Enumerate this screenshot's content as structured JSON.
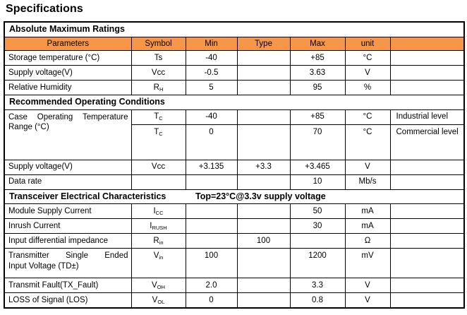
{
  "title": "Specifications",
  "colors": {
    "header_bg": "#F79646",
    "border": "#000000",
    "text": "#000000"
  },
  "table": {
    "section1": "Absolute Maximum Ratings",
    "headers": [
      "Parameters",
      "Symbol",
      "Min",
      "Type",
      "Max",
      "unit",
      ""
    ],
    "amr": [
      {
        "param": "Storage temperature (°C)",
        "sym": "Ts",
        "sub": "",
        "min": "-40",
        "type": "",
        "max": "+85",
        "unit": "°C",
        "note": ""
      },
      {
        "param": "Supply voltage(V)",
        "sym": "Vcc",
        "sub": "",
        "min": "-0.5",
        "type": "",
        "max": "3.63",
        "unit": "V",
        "note": ""
      },
      {
        "param": "Relative Humidity",
        "sym": "R",
        "sub": "H",
        "min": "5",
        "type": "",
        "max": "95",
        "unit": "%",
        "note": ""
      }
    ],
    "section2": "Recommended Operating Conditions",
    "case_temp": {
      "param_line1": "Case Operating Temperature",
      "param_line2": "Range (°C)",
      "rows": [
        {
          "sym": "T",
          "sub": "C",
          "min": "-40",
          "type": "",
          "max": "+85",
          "unit": "°C",
          "note": "Industrial level"
        },
        {
          "sym": "T",
          "sub": "C",
          "min": "0",
          "type": "",
          "max": "70",
          "unit": "°C",
          "note": "Commercial level"
        }
      ]
    },
    "roc": [
      {
        "param": "Supply voltage(V)",
        "sym": "Vcc",
        "sub": "",
        "min": "+3.135",
        "type": "+3.3",
        "max": "+3.465",
        "unit": "V",
        "note": ""
      },
      {
        "param": "Data rate",
        "sym": "",
        "sub": "",
        "min": "",
        "type": "",
        "max": "10",
        "unit": "Mb/s",
        "note": ""
      }
    ],
    "section3": "Transceiver Electrical Characteristics",
    "section3_note": "Top=23°C@3.3v supply voltage",
    "tec": [
      {
        "param": "Module Supply Current",
        "sym": "I",
        "sub": "CC",
        "min": "",
        "type": "",
        "max": "50",
        "unit": "mA",
        "note": ""
      },
      {
        "param": "Inrush Current",
        "sym": "I",
        "sub": "RUSH",
        "min": "",
        "type": "",
        "max": "30",
        "unit": "mA",
        "note": ""
      },
      {
        "param": "Input differential impedance",
        "sym": "R",
        "sub": "in",
        "min": "",
        "type": "100",
        "max": "",
        "unit": "Ω",
        "note": ""
      }
    ],
    "transmitter": {
      "param_line1": "Transmitter Single Ended",
      "param_line2": "Input Voltage (TD±)",
      "sym": "V",
      "sub": "in",
      "min": "100",
      "type": "",
      "max": "1200",
      "unit": "mV",
      "note": ""
    },
    "tec2": [
      {
        "param": "Transmit Fault(TX_Fault)",
        "sym": "V",
        "sub": "OH",
        "min": "2.0",
        "type": "",
        "max": "3.3",
        "unit": "V",
        "note": ""
      },
      {
        "param": "LOSS of Signal (LOS)",
        "sym": "V",
        "sub": "OL",
        "min": "0",
        "type": "",
        "max": "0.8",
        "unit": "V",
        "note": ""
      }
    ]
  }
}
